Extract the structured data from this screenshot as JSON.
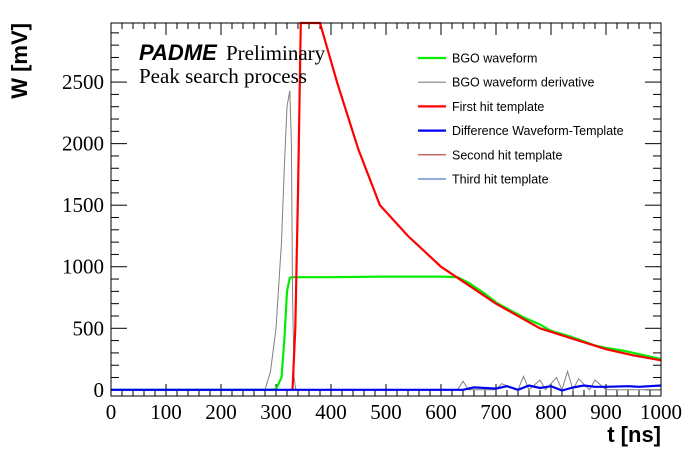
{
  "chart_data": {
    "type": "line",
    "title": "",
    "annotations": {
      "experiment": "PADME",
      "status": "Preliminary",
      "subtitle": "Peak search process"
    },
    "xlabel": "t [ns]",
    "ylabel": "W [mV]",
    "xlim": [
      0,
      1000
    ],
    "ylim": [
      -50,
      2980
    ],
    "xticks": [
      0,
      100,
      200,
      300,
      400,
      500,
      600,
      700,
      800,
      900,
      1000
    ],
    "yticks": [
      0,
      500,
      1000,
      1500,
      2000,
      2500
    ],
    "legend_position": "top-right",
    "series": [
      {
        "name": "BGO waveform",
        "color": "#00ee00",
        "x": [
          0,
          290,
          300,
          310,
          315,
          320,
          325,
          330,
          400,
          500,
          600,
          630,
          650,
          680,
          700,
          720,
          750,
          780,
          800,
          830,
          850,
          880,
          900,
          930,
          950,
          980,
          1000
        ],
        "y": [
          0,
          0,
          5,
          100,
          400,
          800,
          910,
          915,
          915,
          920,
          920,
          915,
          870,
          780,
          710,
          660,
          590,
          530,
          480,
          440,
          410,
          360,
          340,
          320,
          300,
          270,
          250
        ]
      },
      {
        "name": "BGO waveform derivative",
        "color": "#808080",
        "x": [
          0,
          280,
          290,
          300,
          310,
          315,
          320,
          325,
          328,
          330,
          333,
          336,
          340,
          600,
          630,
          640,
          650,
          700,
          710,
          740,
          750,
          760,
          780,
          790,
          810,
          820,
          830,
          840,
          850,
          870,
          880,
          900,
          1000
        ],
        "y": [
          0,
          0,
          150,
          500,
          1200,
          1800,
          2300,
          2430,
          2000,
          800,
          100,
          0,
          0,
          0,
          0,
          70,
          0,
          0,
          50,
          0,
          110,
          0,
          80,
          0,
          100,
          0,
          150,
          0,
          90,
          0,
          80,
          0,
          0
        ]
      },
      {
        "name": "First hit template",
        "color": "#ff0000",
        "x": [
          330,
          335,
          340,
          345,
          380,
          411,
          450,
          489,
          540,
          600,
          650,
          700,
          780,
          850,
          900,
          950,
          1000
        ],
        "y": [
          0,
          500,
          1600,
          2980,
          2980,
          2500,
          1950,
          1500,
          1250,
          1000,
          850,
          700,
          500,
          400,
          330,
          280,
          240
        ]
      },
      {
        "name": "Difference Waveform-Template",
        "color": "#0000ee",
        "x": [
          0,
          300,
          320,
          330,
          600,
          640,
          660,
          700,
          720,
          740,
          760,
          780,
          800,
          820,
          840,
          860,
          880,
          900,
          940,
          960,
          1000
        ],
        "y": [
          0,
          0,
          0,
          0,
          0,
          0,
          20,
          10,
          30,
          0,
          35,
          15,
          30,
          -5,
          20,
          35,
          25,
          25,
          30,
          25,
          35
        ]
      },
      {
        "name": "Second hit template",
        "color": "#bb3333",
        "x": [],
        "y": []
      },
      {
        "name": "Third hit template",
        "color": "#5577cc",
        "x": [],
        "y": []
      }
    ]
  }
}
